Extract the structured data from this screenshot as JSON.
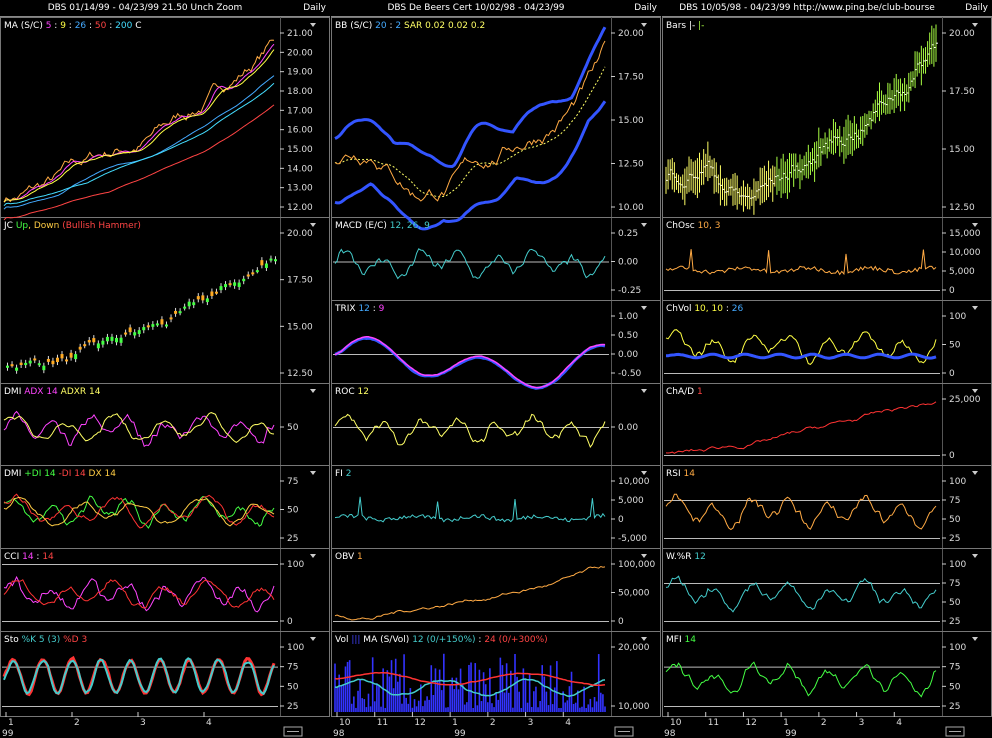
{
  "columns": [
    {
      "title": "DBS  01/14/99 - 04/23/99   21.50   Unch    Zoom",
      "daily": "Daily",
      "x_labels": [
        "1",
        "2",
        "3",
        "4"
      ],
      "year_label": "99",
      "panes": [
        {
          "id": "ma",
          "tag_parts": [
            {
              "t": "MA (S/C)  ",
              "c": "#ffffff"
            },
            {
              "t": "5",
              "c": "#ff44ff"
            },
            {
              "t": " : ",
              "c": "#ffffff"
            },
            {
              "t": "9",
              "c": "#ffff44"
            },
            {
              "t": " : ",
              "c": "#ffffff"
            },
            {
              "t": "26",
              "c": "#44aaff"
            },
            {
              "t": " : ",
              "c": "#ffffff"
            },
            {
              "t": "50",
              "c": "#ff4444"
            },
            {
              "t": " : ",
              "c": "#ffffff"
            },
            {
              "t": "200",
              "c": "#44ddff"
            },
            {
              "t": "    C  ",
              "c": "#ffffff"
            }
          ],
          "ticks": [
            "21.00",
            "20.00",
            "19.00",
            "18.00",
            "17.00",
            "16.00",
            "15.00",
            "14.00",
            "13.00",
            "12.00"
          ],
          "ref_lines": []
        },
        {
          "id": "jc",
          "tag_parts": [
            {
              "t": "JC  ",
              "c": "#ffffff"
            },
            {
              "t": "Up",
              "c": "#44ff44"
            },
            {
              "t": ", Down  ",
              "c": "#ffcc44"
            },
            {
              "t": "(Bullish Hammer)",
              "c": "#ff4444"
            }
          ],
          "ticks": [
            "20.00",
            "17.50",
            "15.00",
            "12.50"
          ],
          "ref_lines": []
        },
        {
          "id": "dmi1",
          "tag_parts": [
            {
              "t": "DMI  ",
              "c": "#ffffff"
            },
            {
              "t": "ADX 14",
              "c": "#ff44ff"
            },
            {
              "t": "  ADXR 14",
              "c": "#ffff66"
            }
          ],
          "ticks": [
            "50"
          ],
          "ref_lines": []
        },
        {
          "id": "dmi2",
          "tag_parts": [
            {
              "t": "DMI  ",
              "c": "#ffffff"
            },
            {
              "t": "+DI 14",
              "c": "#44ff44"
            },
            {
              "t": "  -DI 14",
              "c": "#ff4444"
            },
            {
              "t": "  DX 14",
              "c": "#ffcc44"
            }
          ],
          "ticks": [
            "75",
            "50",
            "25"
          ],
          "ref_lines": []
        },
        {
          "id": "cci",
          "tag_parts": [
            {
              "t": "CCI  ",
              "c": "#ffffff"
            },
            {
              "t": "14",
              "c": "#ff44ff"
            },
            {
              "t": " : ",
              "c": "#ffffff"
            },
            {
              "t": "14",
              "c": "#ff4444"
            }
          ],
          "ticks": [
            "100",
            "0"
          ],
          "ref_lines": [
            "100",
            "0"
          ]
        },
        {
          "id": "sto",
          "tag_parts": [
            {
              "t": "Sto  ",
              "c": "#ffffff"
            },
            {
              "t": "%K 5 (3)",
              "c": "#44cccc"
            },
            {
              "t": "  %D 3",
              "c": "#ff4444"
            }
          ],
          "ticks": [
            "100",
            "75",
            "50",
            "25"
          ],
          "ref_lines": [
            "75",
            "25"
          ]
        }
      ]
    },
    {
      "title": "DBS   De Beers Cert   10/02/98 - 04/23/99",
      "daily": "Daily",
      "x_labels": [
        "10",
        "11",
        "12",
        "1",
        "2",
        "3",
        "4"
      ],
      "year_label_a": "98",
      "year_label_b": "99",
      "panes": [
        {
          "id": "bb",
          "tag_parts": [
            {
              "t": "BB (S/C)  ",
              "c": "#ffffff"
            },
            {
              "t": "20",
              "c": "#44aaff"
            },
            {
              "t": " : ",
              "c": "#ffffff"
            },
            {
              "t": "2",
              "c": "#44aaff"
            },
            {
              "t": "   SAR  0.02  0.02  0.2  ",
              "c": "#ffff66"
            }
          ],
          "ticks": [
            "20.00",
            "17.50",
            "15.00",
            "12.50",
            "10.00"
          ],
          "ref_lines": []
        },
        {
          "id": "macd",
          "tag_parts": [
            {
              "t": "MACD (E/C)  ",
              "c": "#ffffff"
            },
            {
              "t": "12, 26, 9",
              "c": "#44cccc"
            }
          ],
          "ticks": [
            "0.25",
            "0.00",
            "-0.25"
          ],
          "ref_lines": [
            "0.00"
          ]
        },
        {
          "id": "trix",
          "tag_parts": [
            {
              "t": "TRIX  ",
              "c": "#ffffff"
            },
            {
              "t": "12",
              "c": "#44aaff"
            },
            {
              "t": " : ",
              "c": "#ffffff"
            },
            {
              "t": "9",
              "c": "#ff44ff"
            }
          ],
          "ticks": [
            "1.00",
            "0.50",
            "0.00",
            "-0.50"
          ],
          "ref_lines": [
            "0.00"
          ]
        },
        {
          "id": "roc",
          "tag_parts": [
            {
              "t": "ROC  ",
              "c": "#ffffff"
            },
            {
              "t": "12",
              "c": "#ffff66"
            }
          ],
          "ticks": [
            "0.00"
          ],
          "ref_lines": [
            "0.00"
          ]
        },
        {
          "id": "fi",
          "tag_parts": [
            {
              "t": "FI  ",
              "c": "#ffffff"
            },
            {
              "t": "2",
              "c": "#44cccc"
            }
          ],
          "ticks": [
            "10,000",
            "5,000",
            "0",
            "-5,000"
          ],
          "ref_lines": []
        },
        {
          "id": "obv",
          "tag_parts": [
            {
              "t": "OBV  ",
              "c": "#ffffff"
            },
            {
              "t": "1",
              "c": "#ffaa44"
            }
          ],
          "ticks": [
            "100,000",
            "50,000",
            "0"
          ],
          "ref_lines": [
            "0"
          ]
        },
        {
          "id": "vol",
          "tag_parts": [
            {
              "t": "Vol  ",
              "c": "#ffffff"
            },
            {
              "t": "|||",
              "c": "#4444ff"
            },
            {
              "t": "   MA  (S/Vol)  ",
              "c": "#ffffff"
            },
            {
              "t": "12 (0/+150%)",
              "c": "#44cccc"
            },
            {
              "t": " : ",
              "c": "#ffffff"
            },
            {
              "t": "24 (0/+300%)",
              "c": "#ff4444"
            }
          ],
          "ticks": [
            "20,000",
            "10,000"
          ],
          "ref_lines": []
        }
      ]
    },
    {
      "title": "DBS   10/05/98 - 04/23/99    http://www.ping.be/club-bourse",
      "daily": "Daily",
      "x_labels": [
        "10",
        "11",
        "12",
        "1",
        "2",
        "3",
        "4"
      ],
      "year_label_a": "98",
      "year_label_b": "99",
      "panes": [
        {
          "id": "bars",
          "tag_parts": [
            {
              "t": "Bars  ",
              "c": "#ffffff"
            },
            {
              "t": "|-",
              "c": "#ffffff"
            },
            {
              "t": "  |-",
              "c": "#aaff44"
            }
          ],
          "ticks": [
            "20.00",
            "17.50",
            "15.00",
            "12.50"
          ],
          "ref_lines": []
        },
        {
          "id": "chosc",
          "tag_parts": [
            {
              "t": "ChOsc  ",
              "c": "#ffffff"
            },
            {
              "t": "10, 3",
              "c": "#ffaa44"
            }
          ],
          "ticks": [
            "15,000",
            "10,000",
            "5,000",
            "0"
          ],
          "ref_lines": [
            "0"
          ]
        },
        {
          "id": "chvol",
          "tag_parts": [
            {
              "t": "ChVol  ",
              "c": "#ffffff"
            },
            {
              "t": "10, 10",
              "c": "#ffff44"
            },
            {
              "t": " : ",
              "c": "#ffffff"
            },
            {
              "t": "26",
              "c": "#44aaff"
            }
          ],
          "ticks": [
            "100",
            "50",
            "0"
          ],
          "ref_lines": [
            "0"
          ]
        },
        {
          "id": "chad",
          "tag_parts": [
            {
              "t": "ChA/D  ",
              "c": "#ffffff"
            },
            {
              "t": "1",
              "c": "#ff4444"
            }
          ],
          "ticks": [
            "25,000",
            "0"
          ],
          "ref_lines": [
            "0"
          ]
        },
        {
          "id": "rsi",
          "tag_parts": [
            {
              "t": "RSI  ",
              "c": "#ffffff"
            },
            {
              "t": "14",
              "c": "#ffaa44"
            }
          ],
          "ticks": [
            "100",
            "75",
            "50",
            "25"
          ],
          "ref_lines": [
            "75",
            "25"
          ]
        },
        {
          "id": "wr",
          "tag_parts": [
            {
              "t": "W.%R  ",
              "c": "#ffffff"
            },
            {
              "t": "12",
              "c": "#44cccc"
            }
          ],
          "ticks": [
            "100",
            "75",
            "50",
            "25"
          ],
          "ref_lines": [
            "75",
            "25"
          ]
        },
        {
          "id": "mfi",
          "tag_parts": [
            {
              "t": "MFI  ",
              "c": "#ffffff"
            },
            {
              "t": "14",
              "c": "#44ff44"
            }
          ],
          "ticks": [
            "100",
            "75",
            "50",
            "25"
          ],
          "ref_lines": [
            "75",
            "25"
          ]
        }
      ]
    }
  ]
}
